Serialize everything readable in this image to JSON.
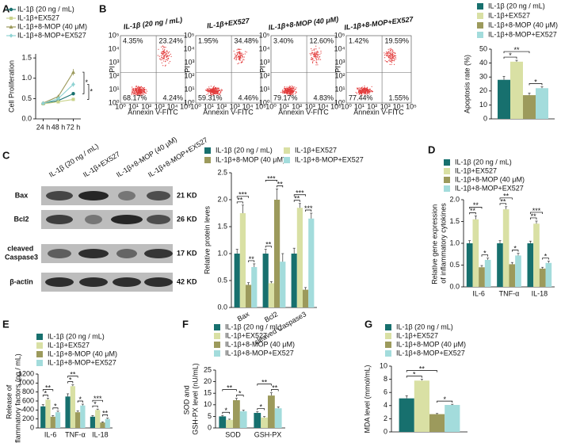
{
  "flow_cytometry": {
    "panel": "B",
    "x_label": "Annexin V-FITC",
    "y_label": "PI",
    "tick_labels": [
      "10⁰",
      "10¹",
      "10²",
      "10³",
      "10⁴",
      "10⁵"
    ],
    "panels": [
      {
        "title": "IL-1β (20 ng / mL)",
        "quadrants": [
          "4.35%",
          "23.24%",
          "68.17%",
          "4.24%"
        ]
      },
      {
        "title": "IL-1β+EX527",
        "quadrants": [
          "1.95%",
          "34.48%",
          "59.31%",
          "4.46%"
        ]
      },
      {
        "title": "IL-1β+8-MOP (40 μM)",
        "quadrants": [
          "3.40%",
          "12.60%",
          "79.17%",
          "4.83%"
        ]
      },
      {
        "title": "IL-1β+8-MOP+EX527",
        "quadrants": [
          "1.42%",
          "19.59%",
          "77.44%",
          "1.55%"
        ]
      }
    ]
  },
  "western_blot": {
    "panel": "C",
    "lanes": [
      "IL-1β (20 ng / mL)",
      "IL-1β+EX527",
      "IL-1β+8-MOP (40 μM)",
      "IL-1β+8-MOP+EX527"
    ],
    "rows": [
      {
        "label": "Bax",
        "size": "21 KD"
      },
      {
        "label": "Bcl2",
        "size": "26 KD"
      },
      {
        "label": "cleaved Caspase3",
        "size": "17 KD"
      },
      {
        "label": "β-actin",
        "size": "42 KD"
      }
    ]
  },
  "chart_data": [
    {
      "type": "line",
      "panel": "A",
      "y_label": "Cell Proliferation",
      "categories": [
        "24 h",
        "48 h",
        "72 h"
      ],
      "ylim": [
        0,
        1.6
      ],
      "yticks": [
        {
          "value": 0,
          "label": "0.0"
        },
        0.5,
        {
          "value": 1,
          "label": "1.0"
        },
        1.5
      ],
      "series": [
        {
          "name": "IL-1β (20 ng / mL)",
          "color": "#17706e",
          "values": [
            0.38,
            0.45,
            0.62
          ],
          "errors": [
            0.02,
            0.03,
            0.04
          ]
        },
        {
          "name": "IL-1β+EX527",
          "color": "#c9d28a",
          "values": [
            0.37,
            0.42,
            0.48
          ],
          "errors": [
            0.02,
            0.03,
            0.04
          ]
        },
        {
          "name": "IL-1β+8-MOP (40 μM)",
          "color": "#9c9a5c",
          "values": [
            0.39,
            0.55,
            1.15
          ],
          "errors": [
            0.02,
            0.04,
            0.08
          ]
        },
        {
          "name": "IL-1β+8-MOP+EX527",
          "color": "#8fd3d3",
          "values": [
            0.38,
            0.5,
            0.85
          ],
          "errors": [
            0.02,
            0.03,
            0.06
          ]
        }
      ],
      "significance": [
        [
          "*",
          "*"
        ]
      ]
    },
    {
      "type": "bar",
      "y_label": "Apoptosis rate (%)",
      "categories": [
        null
      ],
      "ylim": [
        0,
        50
      ],
      "yticks": [
        0,
        10,
        20,
        30,
        40,
        50
      ],
      "series": [
        {
          "name": "IL-1β (20 ng / mL)",
          "color": "#17706e",
          "values": [
            28
          ],
          "errors": [
            2.5
          ]
        },
        {
          "name": "IL-1β+EX527",
          "color": "#d9e0a4",
          "values": [
            41
          ],
          "errors": [
            1
          ]
        },
        {
          "name": "IL-1β+8-MOP (40 μM)",
          "color": "#9c9a5c",
          "values": [
            17
          ],
          "errors": [
            1.5
          ]
        },
        {
          "name": "IL-1β+8-MOP+EX527",
          "color": "#a3dcdc",
          "values": [
            22
          ],
          "errors": [
            1
          ]
        }
      ],
      "significance": [
        [
          "*",
          "*",
          "**"
        ]
      ]
    },
    {
      "type": "bar",
      "y_label": "Relative protein leves",
      "categories": [
        "Bax",
        "Bcl2",
        "cleaved Caspase3"
      ],
      "ylim": [
        0,
        2.5
      ],
      "yticks": [
        {
          "value": 0,
          "label": "0.0"
        },
        0.5,
        {
          "value": 1,
          "label": "1.0"
        },
        1.5,
        {
          "value": 2,
          "label": "2.0"
        },
        2.5
      ],
      "series": [
        {
          "name": "IL-1β (20 ng / mL)",
          "color": "#17706e",
          "values": [
            1.0,
            1.0,
            1.0
          ],
          "errors": [
            0.08,
            0.08,
            0.1
          ]
        },
        {
          "name": "IL-1β+EX527",
          "color": "#d9e0a4",
          "values": [
            1.75,
            0.45,
            1.85
          ],
          "errors": [
            0.15,
            0.03,
            0.08
          ]
        },
        {
          "name": "IL-1β+8-MOP (40 μM)",
          "color": "#9c9a5c",
          "values": [
            0.42,
            2.0,
            0.33
          ],
          "errors": [
            0.04,
            0.2,
            0.04
          ]
        },
        {
          "name": "IL-1β+8-MOP+EX527",
          "color": "#a3dcdc",
          "values": [
            0.75,
            0.85,
            1.65
          ],
          "errors": [
            0.06,
            0.15,
            0.1
          ]
        }
      ],
      "significance": [
        [
          "**",
          "**",
          "***"
        ],
        [
          "**",
          "**",
          "***"
        ],
        [
          "**",
          "***",
          "***"
        ]
      ]
    },
    {
      "type": "bar",
      "panel": "D",
      "y_label": "Relative gene expression of inflammatory cytokines",
      "categories": [
        "IL-6",
        "TNF-α",
        "IL-18"
      ],
      "ylim": [
        0,
        2.0
      ],
      "yticks": [
        {
          "value": 0,
          "label": "0.0"
        },
        0.5,
        {
          "value": 1,
          "label": "1.0"
        },
        1.5,
        {
          "value": 2,
          "label": "2.0"
        }
      ],
      "series": [
        {
          "name": "IL-1β (20 ng / mL)",
          "color": "#17706e",
          "values": [
            1.0,
            1.0,
            1.0
          ],
          "errors": [
            0.06,
            0.06,
            0.05
          ]
        },
        {
          "name": "IL-1β+EX527",
          "color": "#d9e0a4",
          "values": [
            1.55,
            1.78,
            1.45
          ],
          "errors": [
            0.08,
            0.06,
            0.06
          ]
        },
        {
          "name": "IL-1β+8-MOP (40 μM)",
          "color": "#9c9a5c",
          "values": [
            0.45,
            0.52,
            0.42
          ],
          "errors": [
            0.04,
            0.04,
            0.03
          ]
        },
        {
          "name": "IL-1β+8-MOP+EX527",
          "color": "#a3dcdc",
          "values": [
            0.62,
            0.72,
            0.55
          ],
          "errors": [
            0.04,
            0.05,
            0.04
          ]
        }
      ],
      "significance": [
        [
          "**",
          "*",
          "**"
        ],
        [
          "**",
          "*",
          "**"
        ],
        [
          "**",
          "*",
          "***"
        ]
      ]
    },
    {
      "type": "bar",
      "panel": "E",
      "y_label": "Release of inflammatory factors (pg / mL)",
      "categories": [
        "IL-6",
        "TNF-α",
        "IL-18"
      ],
      "ylim": [
        0,
        1200
      ],
      "yticks": [
        0,
        200,
        400,
        600,
        800,
        1000,
        1200
      ],
      "series": [
        {
          "name": "IL-1β (20 ng / mL)",
          "color": "#17706e",
          "values": [
            480,
            700,
            250
          ],
          "errors": [
            40,
            60,
            25
          ]
        },
        {
          "name": "IL-1β+EX527",
          "color": "#d9e0a4",
          "values": [
            630,
            930,
            400
          ],
          "errors": [
            30,
            30,
            20
          ]
        },
        {
          "name": "IL-1β+8-MOP (40 μM)",
          "color": "#9c9a5c",
          "values": [
            250,
            350,
            120
          ],
          "errors": [
            25,
            30,
            15
          ]
        },
        {
          "name": "IL-1β+8-MOP+EX527",
          "color": "#a3dcdc",
          "values": [
            350,
            500,
            200
          ],
          "errors": [
            25,
            30,
            20
          ]
        }
      ],
      "significance": [
        [
          "*",
          "*",
          "**"
        ],
        [
          "*",
          "*",
          "**"
        ],
        [
          "*",
          "**",
          "***"
        ]
      ]
    },
    {
      "type": "bar",
      "panel": "F",
      "y_label": "SOD and GSH-PX level (nU/mL)",
      "categories": [
        "SOD",
        "GSH-PX"
      ],
      "ylim": [
        0,
        25
      ],
      "yticks": [
        0,
        5,
        10,
        15,
        20,
        25
      ],
      "series": [
        {
          "name": "IL-1β (20 ng / mL)",
          "color": "#17706e",
          "values": [
            5,
            6.5
          ],
          "errors": [
            0.4,
            0.5
          ]
        },
        {
          "name": "IL-1β+EX527",
          "color": "#d9e0a4",
          "values": [
            3.5,
            4.5
          ],
          "errors": [
            0.3,
            0.4
          ]
        },
        {
          "name": "IL-1β+8-MOP (40 μM)",
          "color": "#9c9a5c",
          "values": [
            12,
            14
          ],
          "errors": [
            0.8,
            1.2
          ]
        },
        {
          "name": "IL-1β+8-MOP+EX527",
          "color": "#a3dcdc",
          "values": [
            7.2,
            8.5
          ],
          "errors": [
            0.5,
            0.6
          ]
        }
      ],
      "significance": [
        [
          "*",
          "*",
          "**"
        ],
        [
          "*",
          "**",
          "**"
        ]
      ]
    },
    {
      "type": "bar",
      "panel": "G",
      "y_label": "MDA level (mmol/mL)",
      "categories": [
        null
      ],
      "ylim": [
        0,
        10
      ],
      "yticks": [
        0,
        2,
        4,
        6,
        8,
        10
      ],
      "series": [
        {
          "name": "IL-1β (20 ng / mL)",
          "color": "#17706e",
          "values": [
            5.1
          ],
          "errors": [
            0.4
          ]
        },
        {
          "name": "IL-1β+EX527",
          "color": "#d9e0a4",
          "values": [
            7.8
          ],
          "errors": [
            0.2
          ]
        },
        {
          "name": "IL-1β+8-MOP (40 μM)",
          "color": "#9c9a5c",
          "values": [
            2.7
          ],
          "errors": [
            0.1
          ]
        },
        {
          "name": "IL-1β+8-MOP+EX527",
          "color": "#a3dcdc",
          "values": [
            4.1
          ],
          "errors": [
            0.1
          ]
        }
      ],
      "significance": [
        [
          "*",
          "*",
          "**"
        ]
      ]
    }
  ]
}
